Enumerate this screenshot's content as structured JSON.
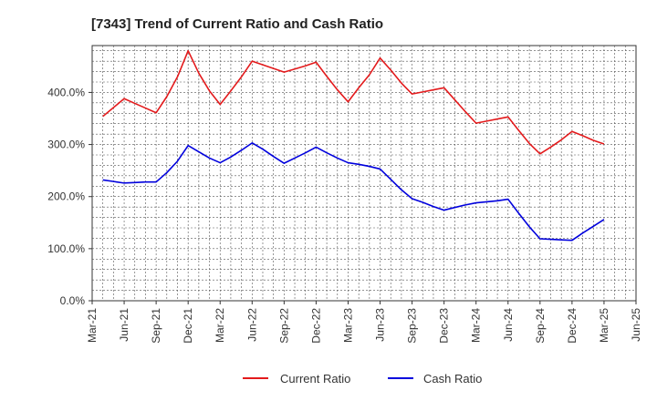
{
  "chart_data": {
    "type": "line",
    "title": "[7343]  Trend of Current Ratio and Cash Ratio",
    "xlabel": "",
    "ylabel": "",
    "ylim": [
      0,
      490
    ],
    "y_ticks": [
      0,
      100,
      200,
      300,
      400
    ],
    "y_tick_labels": [
      "0.0%",
      "100.0%",
      "200.0%",
      "300.0%",
      "400.0%"
    ],
    "x_tick_labels": [
      "Mar-21",
      "Jun-21",
      "Sep-21",
      "Dec-21",
      "Mar-22",
      "Jun-22",
      "Sep-22",
      "Dec-22",
      "Mar-23",
      "Jun-23",
      "Sep-23",
      "Dec-23",
      "Mar-24",
      "Jun-24",
      "Sep-24",
      "Dec-24",
      "Mar-25",
      "Jun-25"
    ],
    "grid": true,
    "legend_position": "bottom-center",
    "x": [
      "Apr-21",
      "May-21",
      "Jun-21",
      "Jul-21",
      "Aug-21",
      "Sep-21",
      "Oct-21",
      "Nov-21",
      "Dec-21",
      "Jan-22",
      "Feb-22",
      "Mar-22",
      "Apr-22",
      "May-22",
      "Jun-22",
      "Jul-22",
      "Aug-22",
      "Sep-22",
      "Oct-22",
      "Nov-22",
      "Dec-22",
      "Jan-23",
      "Feb-23",
      "Mar-23",
      "Apr-23",
      "May-23",
      "Jun-23",
      "Jul-23",
      "Aug-23",
      "Sep-23",
      "Oct-23",
      "Nov-23",
      "Dec-23",
      "Jan-24",
      "Feb-24",
      "Mar-24",
      "Apr-24",
      "May-24",
      "Jun-24",
      "Jul-24",
      "Aug-24",
      "Sep-24",
      "Oct-24",
      "Nov-24",
      "Dec-24",
      "Jan-25",
      "Feb-25",
      "Mar-25"
    ],
    "series": [
      {
        "name": "Current Ratio",
        "color": "#e31a1c",
        "values": [
          354,
          371,
          388,
          379,
          370,
          361,
          392,
          430,
          480,
          437,
          403,
          377,
          403,
          430,
          460,
          453,
          446,
          439,
          445,
          451,
          458,
          431,
          405,
          382,
          409,
          434,
          466,
          443,
          418,
          397,
          401,
          405,
          409,
          386,
          363,
          341,
          345,
          349,
          353,
          327,
          302,
          282,
          295,
          309,
          325,
          317,
          308,
          301
        ]
      },
      {
        "name": "Cash Ratio",
        "color": "#0000dd",
        "values": [
          232,
          229,
          226,
          227,
          228,
          228,
          246,
          268,
          298,
          286,
          274,
          265,
          276,
          289,
          303,
          291,
          277,
          264,
          274,
          284,
          295,
          284,
          274,
          265,
          262,
          258,
          253,
          233,
          213,
          196,
          189,
          181,
          174,
          179,
          184,
          188,
          190,
          192,
          195,
          168,
          142,
          119,
          118,
          117,
          116,
          130,
          143,
          156
        ]
      }
    ]
  }
}
